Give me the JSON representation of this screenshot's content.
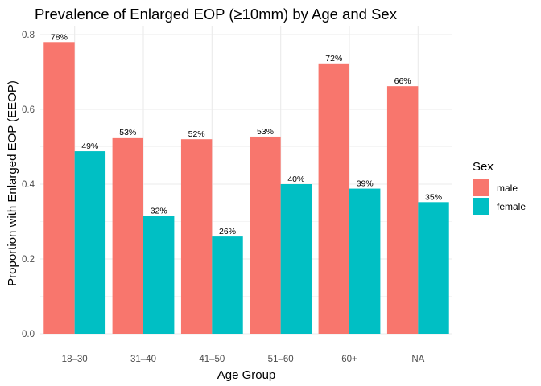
{
  "chart_data": {
    "type": "bar",
    "title": "Prevalence of Enlarged EOP (≥10mm) by Age and Sex",
    "xlabel": "Age Group",
    "ylabel": "Proportion with Enlarged EOP (EEOP)",
    "categories": [
      "18–30",
      "31–40",
      "41–50",
      "51–60",
      "60+",
      "NA"
    ],
    "series": [
      {
        "name": "male",
        "color": "#F8766D",
        "values": [
          0.78,
          0.525,
          0.52,
          0.527,
          0.723,
          0.662
        ],
        "labels": [
          "78%",
          "53%",
          "52%",
          "53%",
          "72%",
          "66%"
        ]
      },
      {
        "name": "female",
        "color": "#00BFC4",
        "values": [
          0.488,
          0.315,
          0.26,
          0.4,
          0.388,
          0.352
        ],
        "labels": [
          "49%",
          "32%",
          "26%",
          "40%",
          "39%",
          "35%"
        ]
      }
    ],
    "ylim": [
      0,
      0.8
    ],
    "yticks": [
      0.0,
      0.2,
      0.4,
      0.6,
      0.8
    ],
    "ytick_labels": [
      "0.0",
      "0.2",
      "0.4",
      "0.6",
      "0.8"
    ],
    "grid": true,
    "legend": {
      "title": "Sex",
      "position": "right"
    }
  }
}
